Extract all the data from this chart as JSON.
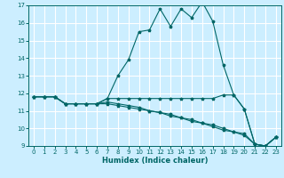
{
  "title": "",
  "xlabel": "Humidex (Indice chaleur)",
  "bg_color": "#cceeff",
  "grid_color": "#ffffff",
  "line_color": "#006666",
  "xlim": [
    -0.5,
    23.5
  ],
  "ylim": [
    9,
    17
  ],
  "xticks": [
    0,
    1,
    2,
    3,
    4,
    5,
    6,
    7,
    8,
    9,
    10,
    11,
    12,
    13,
    14,
    15,
    16,
    17,
    18,
    19,
    20,
    21,
    22,
    23
  ],
  "yticks": [
    9,
    10,
    11,
    12,
    13,
    14,
    15,
    16,
    17
  ],
  "lines": [
    {
      "x": [
        0,
        1,
        2,
        3,
        4,
        5,
        6,
        7,
        8,
        9,
        10,
        11,
        12,
        13,
        14,
        15,
        16,
        17,
        18,
        19,
        20,
        21,
        22,
        23
      ],
      "y": [
        11.8,
        11.8,
        11.8,
        11.4,
        11.4,
        11.4,
        11.4,
        11.7,
        13.0,
        13.9,
        15.5,
        15.6,
        16.8,
        15.8,
        16.8,
        16.3,
        17.2,
        16.1,
        13.6,
        11.9,
        11.1,
        9.1,
        9.0,
        9.5
      ]
    },
    {
      "x": [
        0,
        1,
        2,
        3,
        4,
        5,
        6,
        7,
        8,
        9,
        10,
        11,
        12,
        13,
        14,
        15,
        16,
        17,
        18,
        19,
        20,
        21,
        22,
        23
      ],
      "y": [
        11.8,
        11.8,
        11.8,
        11.4,
        11.4,
        11.4,
        11.4,
        11.7,
        11.7,
        11.7,
        11.7,
        11.7,
        11.7,
        11.7,
        11.7,
        11.7,
        11.7,
        11.7,
        11.9,
        11.9,
        11.1,
        9.1,
        9.0,
        9.5
      ]
    },
    {
      "x": [
        0,
        1,
        2,
        3,
        4,
        5,
        6,
        7,
        8,
        9,
        10,
        11,
        12,
        13,
        14,
        15,
        16,
        17,
        18,
        19,
        20,
        21,
        22,
        23
      ],
      "y": [
        11.8,
        11.8,
        11.8,
        11.4,
        11.4,
        11.4,
        11.4,
        11.4,
        11.3,
        11.2,
        11.1,
        11.0,
        10.9,
        10.7,
        10.6,
        10.4,
        10.3,
        10.1,
        9.9,
        9.8,
        9.6,
        9.1,
        9.0,
        9.5
      ]
    },
    {
      "x": [
        0,
        1,
        2,
        3,
        4,
        5,
        6,
        7,
        8,
        9,
        10,
        11,
        12,
        13,
        14,
        15,
        16,
        17,
        18,
        19,
        20,
        21,
        22,
        23
      ],
      "y": [
        11.8,
        11.8,
        11.8,
        11.4,
        11.4,
        11.4,
        11.4,
        11.5,
        11.4,
        11.3,
        11.2,
        11.0,
        10.9,
        10.8,
        10.6,
        10.5,
        10.3,
        10.2,
        10.0,
        9.8,
        9.7,
        9.1,
        9.0,
        9.5
      ]
    }
  ]
}
